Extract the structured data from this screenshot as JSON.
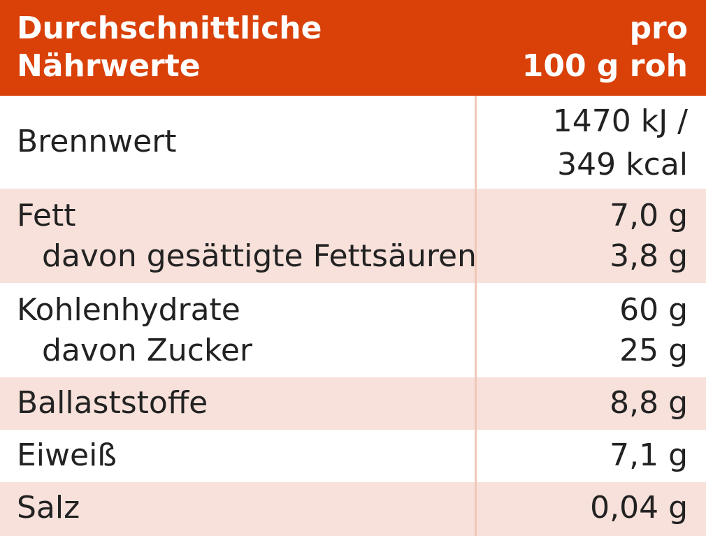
{
  "header": {
    "col_left_line1": "Durchschnittliche",
    "col_left_line2": "Nährwerte",
    "col_right_line1": "pro",
    "col_right_line2": "100 g roh"
  },
  "rows": [
    {
      "name": "Brennwert",
      "value_line1": "1470 kJ /",
      "value_line2": "349 kcal"
    },
    {
      "name": "Fett",
      "value": "7,0 g",
      "sub_name": "davon gesättigte Fettsäuren",
      "sub_value": "3,8 g"
    },
    {
      "name": "Kohlenhydrate",
      "value": "60 g",
      "sub_name": "davon Zucker",
      "sub_value": "25 g"
    },
    {
      "name": "Ballaststoffe",
      "value": "8,8 g"
    },
    {
      "name": "Eiweiß",
      "value": "7,1 g"
    },
    {
      "name": "Salz",
      "value": "0,04 g"
    }
  ],
  "colors": {
    "header_bg": "#d94109",
    "row_shade": "#f7e1da",
    "divider": "#f0c8b8"
  }
}
